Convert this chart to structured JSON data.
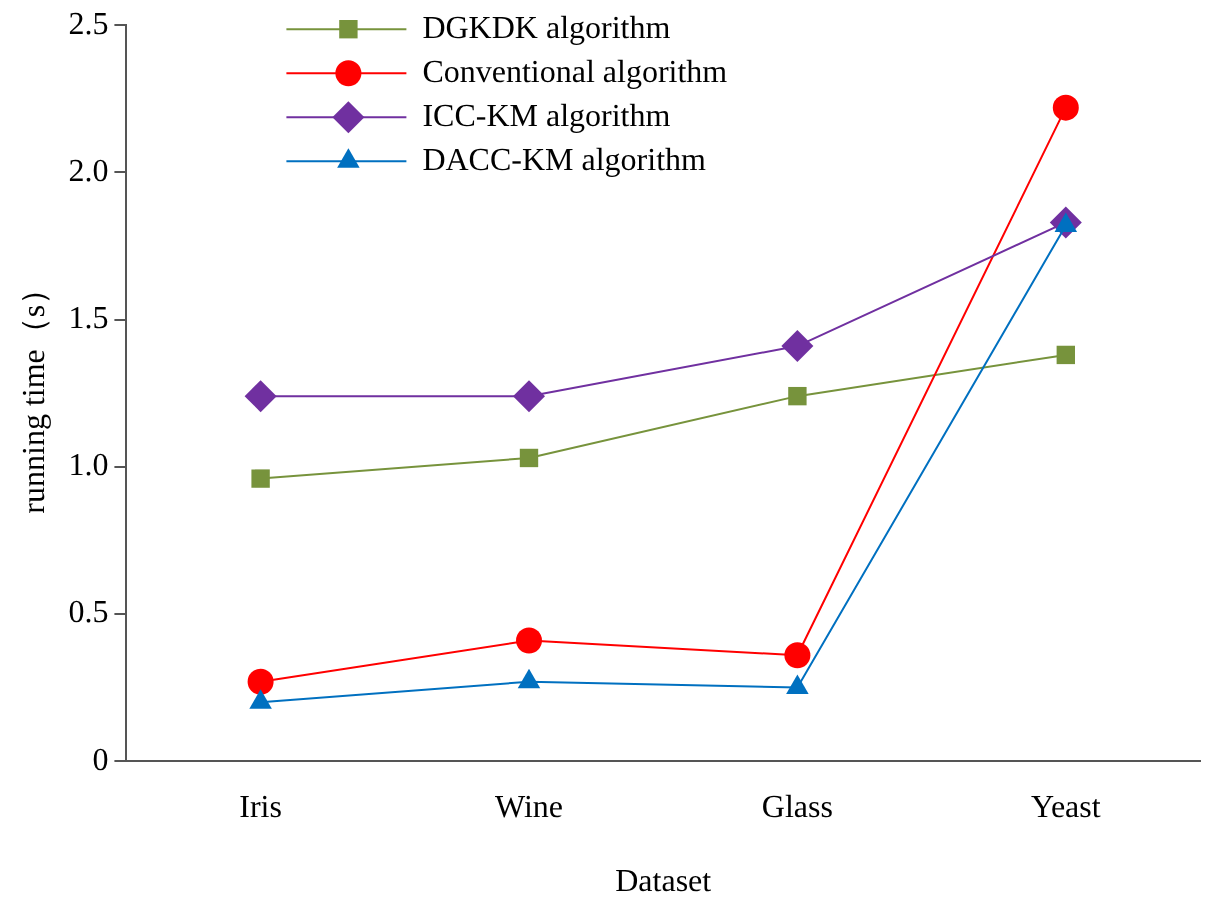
{
  "chart_data": {
    "type": "line",
    "xlabel": "Dataset",
    "ylabel": "running time（s）",
    "categories": [
      "Iris",
      "Wine",
      "Glass",
      "Yeast"
    ],
    "series": [
      {
        "name": "DGKDK algorithm",
        "color": "#77933c",
        "marker": "square",
        "values": [
          0.96,
          1.03,
          1.24,
          1.38
        ]
      },
      {
        "name": "Conventional algorithm",
        "color": "#ff0000",
        "marker": "circle",
        "values": [
          0.27,
          0.41,
          0.36,
          2.22
        ]
      },
      {
        "name": "ICC-KM algorithm",
        "color": "#7030a0",
        "marker": "diamond",
        "values": [
          1.24,
          1.24,
          1.41,
          1.83
        ]
      },
      {
        "name": "DACC-KM algorithm",
        "color": "#0070c0",
        "marker": "triangle",
        "values": [
          0.2,
          0.27,
          0.25,
          1.82
        ]
      }
    ],
    "ylim": [
      0,
      2.5
    ],
    "yticks": [
      0,
      0.5,
      {
        "value": 1,
        "label": "1.0"
      },
      1.5,
      {
        "value": 2,
        "label": "2.0"
      },
      2.5
    ],
    "grid": false,
    "legend": "top left"
  }
}
